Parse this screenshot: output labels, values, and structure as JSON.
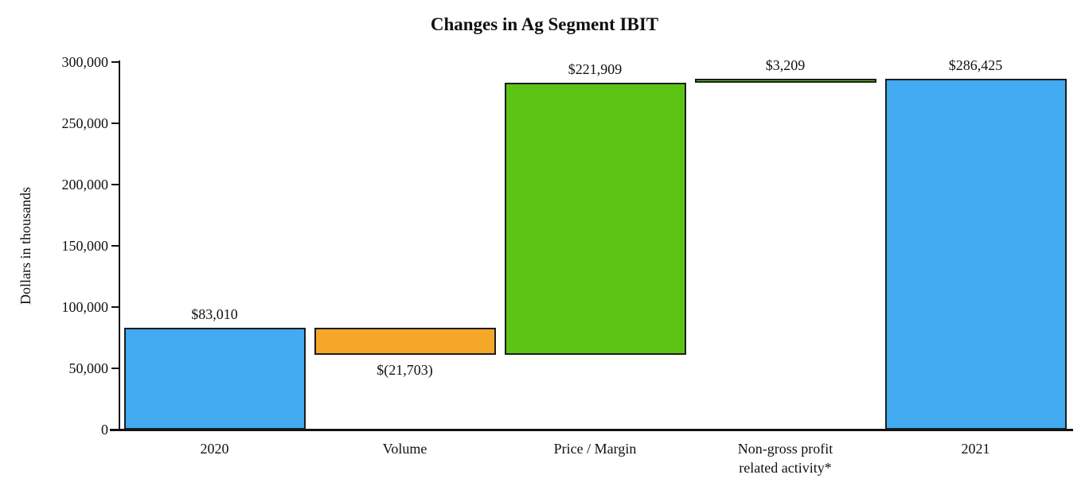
{
  "chart_data": {
    "type": "bar",
    "subtype": "waterfall",
    "title": "Changes in Ag Segment IBIT",
    "xlabel": "",
    "ylabel": "Dollars in thousands",
    "ylim": [
      0,
      300000
    ],
    "ytick_step": 50000,
    "grid": "off",
    "legend": "none",
    "yticks": [
      {
        "value": 0,
        "label": "0"
      },
      {
        "value": 50000,
        "label": "50,000"
      },
      {
        "value": 100000,
        "label": "100,000"
      },
      {
        "value": 150000,
        "label": "150,000"
      },
      {
        "value": 200000,
        "label": "200,000"
      },
      {
        "value": 250000,
        "label": "250,000"
      },
      {
        "value": 300000,
        "label": "300,000"
      }
    ],
    "categories": [
      "2020",
      "Volume",
      "Price / Margin",
      "Non-gross profit\nrelated activity*",
      "2021"
    ],
    "bars": [
      {
        "category": "2020",
        "start": 0,
        "end": 83010,
        "amount": 83010,
        "value_label": "$83,010",
        "color_key": "blue",
        "value_label_position": "above"
      },
      {
        "category": "Volume",
        "start": 61307,
        "end": 83010,
        "amount": -21703,
        "value_label": "$(21,703)",
        "color_key": "orange",
        "value_label_position": "below"
      },
      {
        "category": "Price / Margin",
        "start": 61307,
        "end": 283216,
        "amount": 221909,
        "value_label": "$221,909",
        "color_key": "green",
        "value_label_position": "above"
      },
      {
        "category": "Non-gross profit\nrelated activity*",
        "start": 283216,
        "end": 286425,
        "amount": 3209,
        "value_label": "$3,209",
        "color_key": "green",
        "value_label_position": "above"
      },
      {
        "category": "2021",
        "start": 0,
        "end": 286425,
        "amount": 286425,
        "value_label": "$286,425",
        "color_key": "blue",
        "value_label_position": "above"
      }
    ],
    "colors": {
      "blue": "#41aaf0",
      "orange": "#f5a728",
      "green": "#5cc415",
      "border": "#1c1c1c",
      "axis": "#111111"
    }
  }
}
